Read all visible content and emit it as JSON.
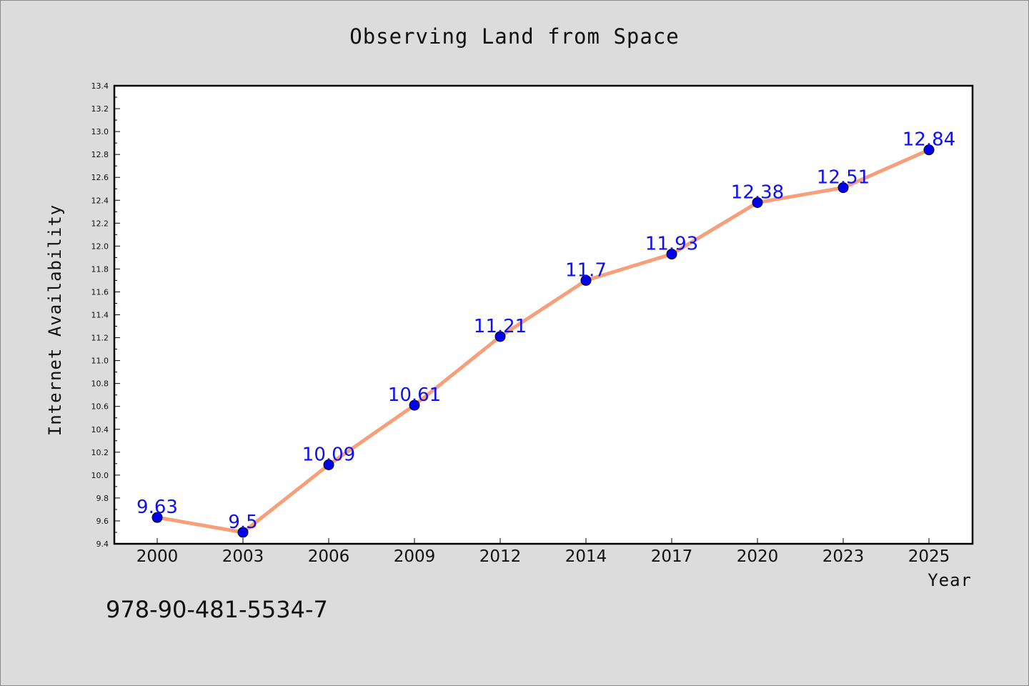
{
  "page": {
    "background": "#dcdcdc",
    "footer_code": "978-90-481-5534-7"
  },
  "chart_data": {
    "type": "line",
    "title": "Observing Land from Space",
    "xlabel": "Year",
    "ylabel": "Internet Availability",
    "categories": [
      "2000",
      "2003",
      "2006",
      "2009",
      "2012",
      "2014",
      "2017",
      "2020",
      "2023",
      "2025"
    ],
    "series": [
      {
        "values": [
          9.63,
          9.5,
          10.09,
          10.61,
          11.21,
          11.7,
          11.93,
          12.38,
          12.51,
          12.84
        ],
        "line_color": "#f5a07a",
        "marker_color": "#0000ee"
      }
    ],
    "data_labels": [
      "9.63",
      "9.5",
      "10.09",
      "10.61",
      "11.21",
      "11.7",
      "11.93",
      "12.38",
      "12.51",
      "12.84"
    ],
    "ylim": [
      9.4,
      13.4
    ],
    "yticks": [
      "9.4",
      "9.6",
      "9.8",
      "10.0",
      "10.2",
      "10.4",
      "10.6",
      "10.8",
      "11.0",
      "11.2",
      "11.4",
      "11.6",
      "11.8",
      "12.0",
      "12.2",
      "12.4",
      "12.6",
      "12.8",
      "13.0",
      "13.2",
      "13.4"
    ],
    "grid": false,
    "legend": "none"
  }
}
